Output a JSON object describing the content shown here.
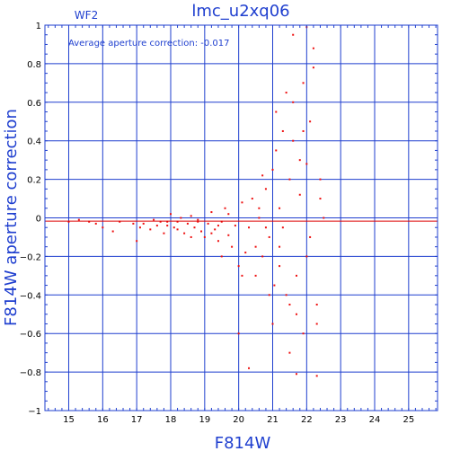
{
  "chart_data": {
    "type": "scatter",
    "title": "lmc_u2xq06",
    "corner_label": "WF2",
    "annotation": "Average aperture correction: -0.017",
    "xlabel": "F814W",
    "ylabel": "F814W aperture correction",
    "xlim": [
      14.3,
      25.85
    ],
    "ylim": [
      -1,
      1
    ],
    "xticks": [
      15,
      16,
      17,
      18,
      19,
      20,
      21,
      22,
      23,
      24,
      25
    ],
    "yticks": [
      -1,
      -0.8,
      -0.6,
      -0.4,
      -0.2,
      0,
      0.2,
      0.4,
      0.6,
      0.8,
      1
    ],
    "ytick_labels": [
      "−1",
      "−0.8",
      "−0.6",
      "−0.4",
      "−0.2",
      "0",
      "0.2",
      "0.4",
      "0.6",
      "0.8",
      "1"
    ],
    "grid": true,
    "reference_line": {
      "y": -0.017,
      "color": "#dd0000"
    },
    "colors": {
      "axis": "#1f3fcf",
      "points": "#ee1111",
      "background": "#ffffff"
    },
    "series": [
      {
        "color": "#ee1111",
        "points": [
          [
            15.0,
            -0.02
          ],
          [
            15.3,
            -0.01
          ],
          [
            15.6,
            -0.02
          ],
          [
            15.8,
            -0.03
          ],
          [
            16.0,
            -0.05
          ],
          [
            16.3,
            -0.07
          ],
          [
            16.5,
            -0.02
          ],
          [
            16.9,
            -0.03
          ],
          [
            17.0,
            -0.12
          ],
          [
            17.1,
            -0.05
          ],
          [
            17.2,
            -0.03
          ],
          [
            17.4,
            -0.06
          ],
          [
            17.5,
            -0.01
          ],
          [
            17.6,
            -0.04
          ],
          [
            17.7,
            -0.02
          ],
          [
            17.8,
            -0.08
          ],
          [
            17.9,
            -0.04
          ],
          [
            18.0,
            0.02
          ],
          [
            18.1,
            -0.05
          ],
          [
            18.2,
            -0.02
          ],
          [
            18.3,
            0.0
          ],
          [
            18.4,
            -0.08
          ],
          [
            18.5,
            -0.03
          ],
          [
            18.6,
            0.01
          ],
          [
            18.7,
            -0.05
          ],
          [
            18.8,
            -0.02
          ],
          [
            18.9,
            -0.07
          ],
          [
            19.0,
            -0.1
          ],
          [
            19.1,
            -0.03
          ],
          [
            19.2,
            0.03
          ],
          [
            19.3,
            -0.06
          ],
          [
            19.4,
            -0.12
          ],
          [
            19.5,
            -0.02
          ],
          [
            19.6,
            0.05
          ],
          [
            19.7,
            -0.09
          ],
          [
            19.8,
            -0.15
          ],
          [
            19.9,
            -0.04
          ],
          [
            20.0,
            -0.25
          ],
          [
            20.1,
            0.08
          ],
          [
            20.2,
            -0.18
          ],
          [
            20.3,
            -0.05
          ],
          [
            20.4,
            0.1
          ],
          [
            20.5,
            -0.3
          ],
          [
            20.6,
            0.05
          ],
          [
            20.7,
            -0.2
          ],
          [
            20.8,
            0.15
          ],
          [
            20.9,
            -0.1
          ],
          [
            21.0,
            0.25
          ],
          [
            21.05,
            -0.35
          ],
          [
            21.1,
            0.35
          ],
          [
            21.2,
            -0.15
          ],
          [
            21.3,
            0.45
          ],
          [
            21.4,
            -0.4
          ],
          [
            21.5,
            0.2
          ],
          [
            21.6,
            0.6
          ],
          [
            21.7,
            -0.3
          ],
          [
            21.8,
            0.3
          ],
          [
            21.9,
            0.7
          ],
          [
            22.0,
            -0.2
          ],
          [
            22.1,
            0.5
          ],
          [
            22.2,
            0.78
          ],
          [
            22.3,
            -0.45
          ],
          [
            22.4,
            0.1
          ],
          [
            22.5,
            0.0
          ],
          [
            22.0,
            0.99
          ],
          [
            21.6,
            0.95
          ],
          [
            22.2,
            0.88
          ],
          [
            22.3,
            -0.55
          ],
          [
            21.5,
            -0.7
          ],
          [
            21.9,
            -0.6
          ],
          [
            20.0,
            -0.6
          ],
          [
            20.3,
            -0.78
          ],
          [
            21.7,
            -0.81
          ],
          [
            22.3,
            -0.82
          ],
          [
            21.2,
            0.05
          ],
          [
            20.8,
            -0.05
          ],
          [
            20.6,
            0.0
          ],
          [
            19.7,
            0.02
          ],
          [
            19.4,
            -0.04
          ],
          [
            18.8,
            -0.01
          ],
          [
            18.2,
            -0.06
          ],
          [
            17.9,
            -0.02
          ],
          [
            21.3,
            -0.05
          ],
          [
            21.8,
            0.12
          ],
          [
            22.1,
            -0.1
          ],
          [
            22.4,
            0.2
          ],
          [
            21.1,
            0.55
          ],
          [
            21.4,
            0.65
          ],
          [
            21.6,
            0.4
          ],
          [
            21.9,
            0.45
          ],
          [
            22.0,
            0.28
          ],
          [
            21.7,
            -0.5
          ],
          [
            21.2,
            -0.25
          ],
          [
            20.9,
            -0.4
          ],
          [
            20.5,
            -0.15
          ],
          [
            20.1,
            -0.3
          ],
          [
            19.5,
            -0.2
          ],
          [
            19.2,
            -0.08
          ],
          [
            18.6,
            -0.1
          ],
          [
            20.7,
            0.22
          ],
          [
            21.0,
            -0.55
          ],
          [
            21.5,
            -0.45
          ]
        ]
      }
    ]
  }
}
